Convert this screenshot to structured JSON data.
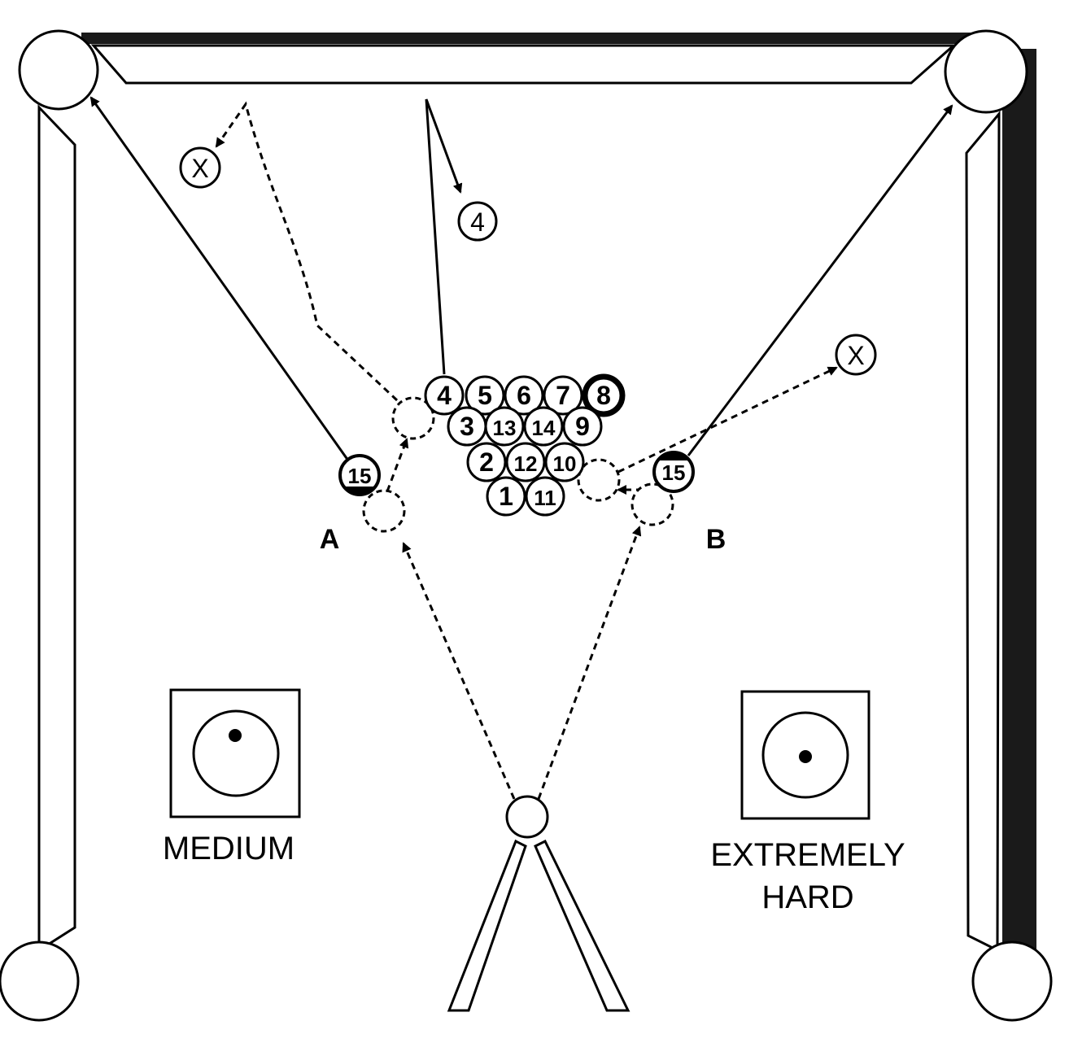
{
  "diagram": {
    "labels": {
      "shot_a": "A",
      "shot_b": "B",
      "difficulty_left": "MEDIUM",
      "difficulty_right_line1": "EXTREMELY",
      "difficulty_right_line2": "HARD"
    },
    "rack_balls": [
      {
        "number": "4",
        "solid": false
      },
      {
        "number": "5",
        "solid": false
      },
      {
        "number": "6",
        "solid": false
      },
      {
        "number": "7",
        "solid": false
      },
      {
        "number": "8",
        "solid": true
      },
      {
        "number": "3",
        "solid": false
      },
      {
        "number": "13",
        "solid": false
      },
      {
        "number": "14",
        "solid": false
      },
      {
        "number": "9",
        "solid": false
      },
      {
        "number": "2",
        "solid": false
      },
      {
        "number": "12",
        "solid": false
      },
      {
        "number": "10",
        "solid": false
      },
      {
        "number": "1",
        "solid": false
      },
      {
        "number": "11",
        "solid": false
      }
    ],
    "object_ball_a": "15",
    "object_ball_b": "15",
    "deflected_ball": "4",
    "cue_ball_end_left": "X",
    "cue_ball_end_right": "X",
    "colors": {
      "ink": "#000000",
      "paper": "#ffffff",
      "rail": "#1a1a1a"
    }
  }
}
